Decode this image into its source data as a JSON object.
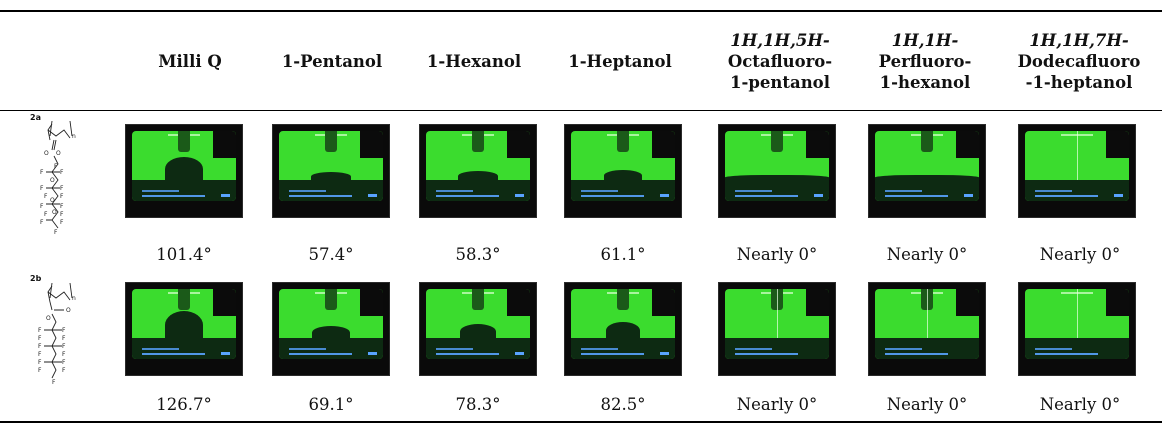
{
  "headers": [
    {
      "id": "milli-q",
      "label": "Milli Q"
    },
    {
      "id": "pentanol",
      "label": "1-Pentanol"
    },
    {
      "id": "hexanol",
      "label": "1-Hexanol"
    },
    {
      "id": "heptanol",
      "label": "1-Heptanol"
    },
    {
      "id": "octafluoro",
      "line1": "1H,1H,5H-",
      "line2": "Octafluoro-",
      "line3": "1-pentanol"
    },
    {
      "id": "perfluoro",
      "line1": "1H,1H-",
      "line2": "Perfluoro-",
      "line3": "1-hexanol"
    },
    {
      "id": "dodecafluoro",
      "line1": "1H,1H,7H-",
      "line2": "Dodecafluoro",
      "line3": "-1-heptanol"
    }
  ],
  "rows": [
    {
      "label": "2a",
      "structure_labels": [
        "n",
        "O",
        "O",
        "F",
        "F",
        "F",
        "O",
        "F",
        "F",
        "F",
        "F",
        "O",
        "F",
        "F",
        "F",
        "F",
        "O",
        "F",
        "F",
        "F"
      ],
      "angles": [
        "101.4°",
        "57.4°",
        "58.3°",
        "61.1°",
        "Nearly 0°",
        "Nearly 0°",
        "Nearly 0°"
      ]
    },
    {
      "label": "2b",
      "structure_labels": [
        "n",
        "O",
        "O",
        "F",
        "F",
        "F",
        "F",
        "F",
        "F",
        "F",
        "F",
        "F",
        "F",
        "F",
        "F",
        "F"
      ],
      "angles": [
        "126.7°",
        "69.1°",
        "78.3°",
        "82.5°",
        "Nearly 0°",
        "Nearly 0°",
        "Nearly 0°"
      ]
    }
  ],
  "colors": {
    "screen_green": "#3bdc2e",
    "stage": "#0d2a12",
    "text_blue": "#59a3ff",
    "rule": "#000000"
  }
}
